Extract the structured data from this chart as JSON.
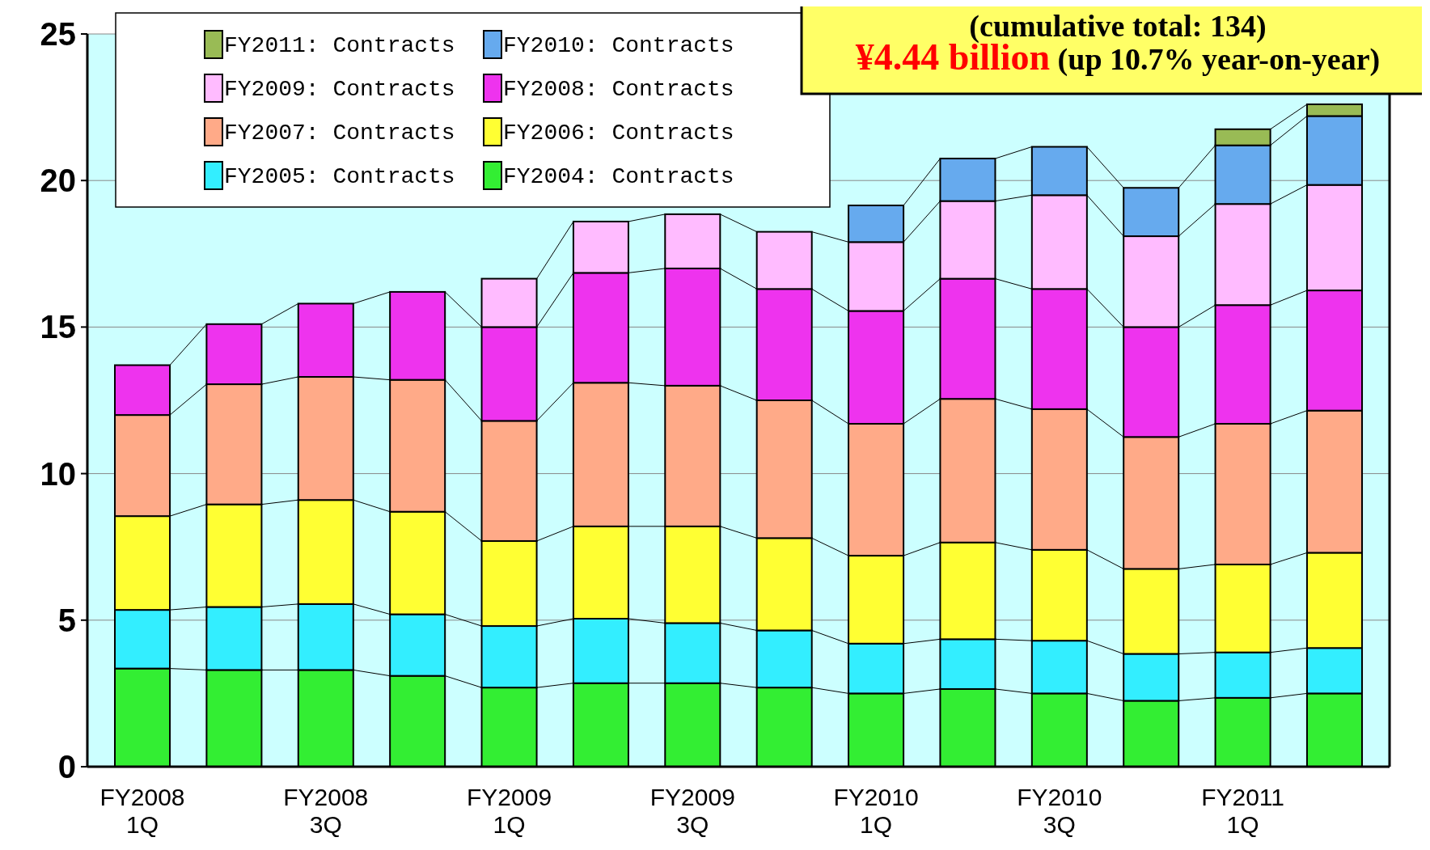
{
  "chart_data": {
    "type": "bar",
    "stacked": true,
    "categories": [
      "FY2008 1Q",
      null,
      "FY2008 3Q",
      null,
      "FY2009 1Q",
      null,
      "FY2009 3Q",
      null,
      "FY2010 1Q",
      null,
      "FY2010 3Q",
      null,
      "FY2011 1Q",
      null
    ],
    "series": [
      {
        "name": "FY2004: Contracts",
        "color": "#33ee33",
        "values": [
          3.35,
          3.3,
          3.3,
          3.1,
          2.7,
          2.85,
          2.85,
          2.7,
          2.5,
          2.65,
          2.5,
          2.25,
          2.35,
          2.5
        ]
      },
      {
        "name": "FY2005: Contracts",
        "color": "#33eeff",
        "values": [
          2.0,
          2.15,
          2.25,
          2.1,
          2.1,
          2.2,
          2.05,
          1.95,
          1.7,
          1.7,
          1.8,
          1.6,
          1.55,
          1.55
        ]
      },
      {
        "name": "FY2006: Contracts",
        "color": "#ffff33",
        "values": [
          3.2,
          3.5,
          3.55,
          3.5,
          2.9,
          3.15,
          3.3,
          3.15,
          3.0,
          3.3,
          3.1,
          2.9,
          3.0,
          3.25
        ]
      },
      {
        "name": "FY2007: Contracts",
        "color": "#ffaa88",
        "values": [
          3.45,
          4.1,
          4.2,
          4.5,
          4.1,
          4.9,
          4.8,
          4.7,
          4.5,
          4.9,
          4.8,
          4.5,
          4.8,
          4.85
        ]
      },
      {
        "name": "FY2008: Contracts",
        "color": "#ee33ee",
        "values": [
          1.7,
          2.05,
          2.5,
          3.0,
          3.2,
          3.75,
          4.0,
          3.8,
          3.85,
          4.1,
          4.1,
          3.75,
          4.05,
          4.1
        ]
      },
      {
        "name": "FY2009: Contracts",
        "color": "#ffbbff",
        "values": [
          null,
          null,
          null,
          null,
          1.65,
          1.75,
          1.85,
          1.95,
          2.35,
          2.65,
          3.2,
          3.1,
          3.45,
          3.6
        ]
      },
      {
        "name": "FY2010: Contracts",
        "color": "#66aaee",
        "values": [
          null,
          null,
          null,
          null,
          null,
          null,
          null,
          null,
          1.25,
          1.45,
          1.65,
          1.65,
          2.0,
          2.35
        ]
      },
      {
        "name": "FY2011: Contracts",
        "color": "#99bb55",
        "values": [
          null,
          null,
          null,
          null,
          null,
          null,
          null,
          null,
          null,
          null,
          null,
          null,
          0.55,
          0.4
        ]
      }
    ],
    "ylim": [
      0,
      25
    ],
    "yticks": [
      0,
      5,
      10,
      15,
      20,
      25
    ],
    "grid": "y",
    "legend": "top left",
    "annotations": [
      "(cumulative total: 134)",
      "¥4.44 billion",
      "(up 10.7% year-on-year)"
    ]
  }
}
